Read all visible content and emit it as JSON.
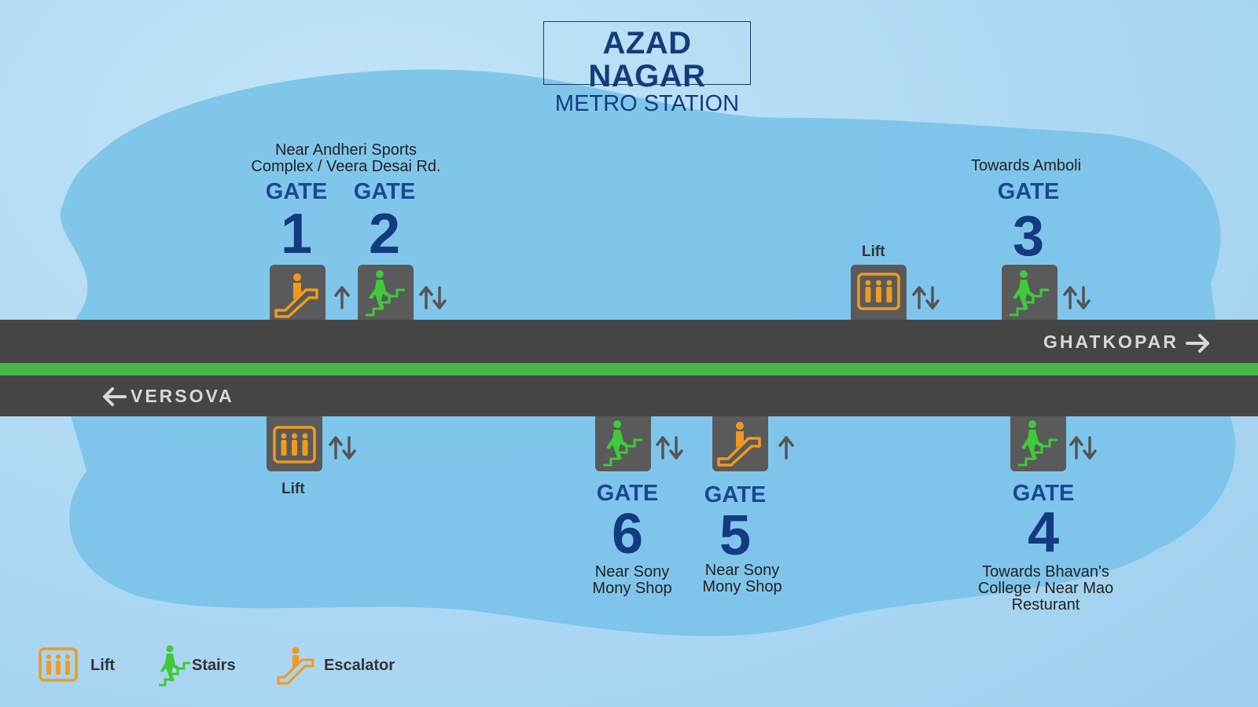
{
  "title": {
    "line1": "AZAD NAGAR",
    "line2": "METRO STATION"
  },
  "directions": {
    "east": "GHATKOPAR",
    "west": "VERSOVA"
  },
  "gate_word": "GATE",
  "gates": {
    "g1": {
      "number": "1",
      "facility": "escalator-icon",
      "flow": "up"
    },
    "g2": {
      "number": "2",
      "facility": "stairs-icon",
      "flow": "both"
    },
    "g3": {
      "number": "3",
      "facility": "stairs-icon",
      "flow": "both"
    },
    "g4": {
      "number": "4",
      "facility": "stairs-icon",
      "flow": "both"
    },
    "g5": {
      "number": "5",
      "facility": "escalator-icon",
      "flow": "up"
    },
    "g6": {
      "number": "6",
      "facility": "stairs-icon",
      "flow": "both"
    }
  },
  "notes": {
    "gates_1_2_line1": "Near Andheri Sports",
    "gates_1_2_line2": "Complex / Veera Desai Rd.",
    "gate_3": "Towards Amboli",
    "gate_6_line1": "Near Sony",
    "gate_6_line2": "Mony Shop",
    "gate_5_line1": "Near Sony",
    "gate_5_line2": "Mony Shop",
    "gate_4_line1": "Towards Bhavan's",
    "gate_4_line2": "College / Near Mao",
    "gate_4_line3": "Resturant"
  },
  "lift_label": "Lift",
  "legend": {
    "lift": "Lift",
    "stairs": "Stairs",
    "escalator": "Escalator"
  },
  "colors": {
    "background": "#b3dcf5",
    "station_area": "#7cc4ea",
    "track": "#454545",
    "green_line": "#47b648",
    "gate_text": "#1a4892",
    "lift_orange": "#f19a1e",
    "stairs_green": "#3fc93b",
    "icon_box": "#5a5a5a"
  }
}
